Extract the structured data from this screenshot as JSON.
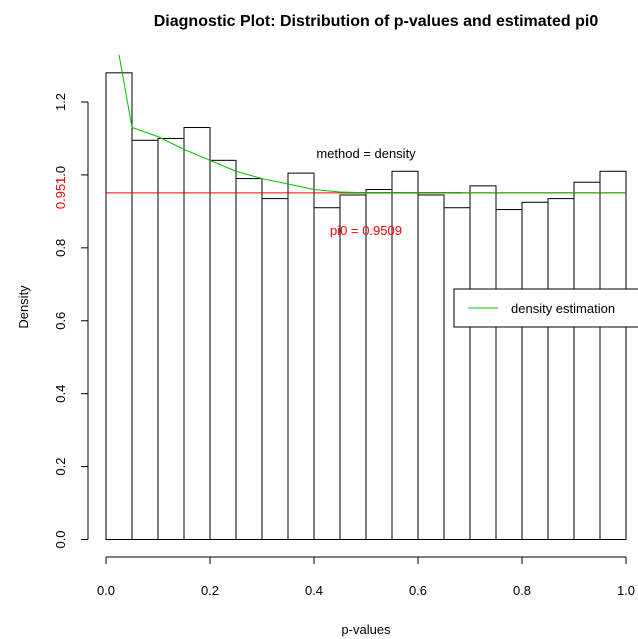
{
  "chart_data": {
    "type": "bar",
    "title": "Diagnostic Plot: Distribution of p-values and estimated pi0",
    "xlabel": "p-values",
    "ylabel": "Density",
    "xlim": [
      0,
      1
    ],
    "ylim": [
      0,
      1.3
    ],
    "x_ticks": [
      "0.0",
      "0.2",
      "0.4",
      "0.6",
      "0.8",
      "1.0"
    ],
    "y_ticks": [
      "0.0",
      "0.2",
      "0.4",
      "0.6",
      "0.8",
      "1.0",
      "1.2"
    ],
    "bins": {
      "edges": [
        0,
        0.05,
        0.1,
        0.15,
        0.2,
        0.25,
        0.3,
        0.35,
        0.4,
        0.45,
        0.5,
        0.55,
        0.6,
        0.65,
        0.7,
        0.75,
        0.8,
        0.85,
        0.9,
        0.95,
        1.0
      ],
      "values": [
        1.28,
        1.095,
        1.1,
        1.13,
        1.04,
        0.99,
        0.935,
        1.005,
        0.91,
        0.945,
        0.96,
        1.01,
        0.945,
        0.91,
        0.97,
        0.905,
        0.925,
        0.935,
        0.98,
        1.01
      ]
    },
    "series": [
      {
        "name": "density estimation",
        "color": "#00c000",
        "x": [
          0.025,
          0.05,
          0.1,
          0.15,
          0.2,
          0.25,
          0.3,
          0.35,
          0.4,
          0.45,
          0.5,
          0.55,
          0.6,
          0.65,
          0.7,
          0.8,
          0.9,
          1.0
        ],
        "y": [
          1.33,
          1.13,
          1.105,
          1.07,
          1.04,
          1.01,
          0.99,
          0.975,
          0.96,
          0.953,
          0.951,
          0.951,
          0.951,
          0.951,
          0.951,
          0.951,
          0.951,
          0.951
        ]
      }
    ],
    "pi0_line": {
      "value": 0.9509,
      "color": "#ff0000",
      "axis_label": "0.951"
    },
    "brown_segment": {
      "x": [
        0.45,
        0.685
      ],
      "y": 0.951,
      "color": "#8b4513"
    },
    "annotations": {
      "method": "method = density",
      "pi0": "pi0 = 0.9509"
    },
    "legend": {
      "position": "right",
      "label": "density estimation"
    }
  }
}
